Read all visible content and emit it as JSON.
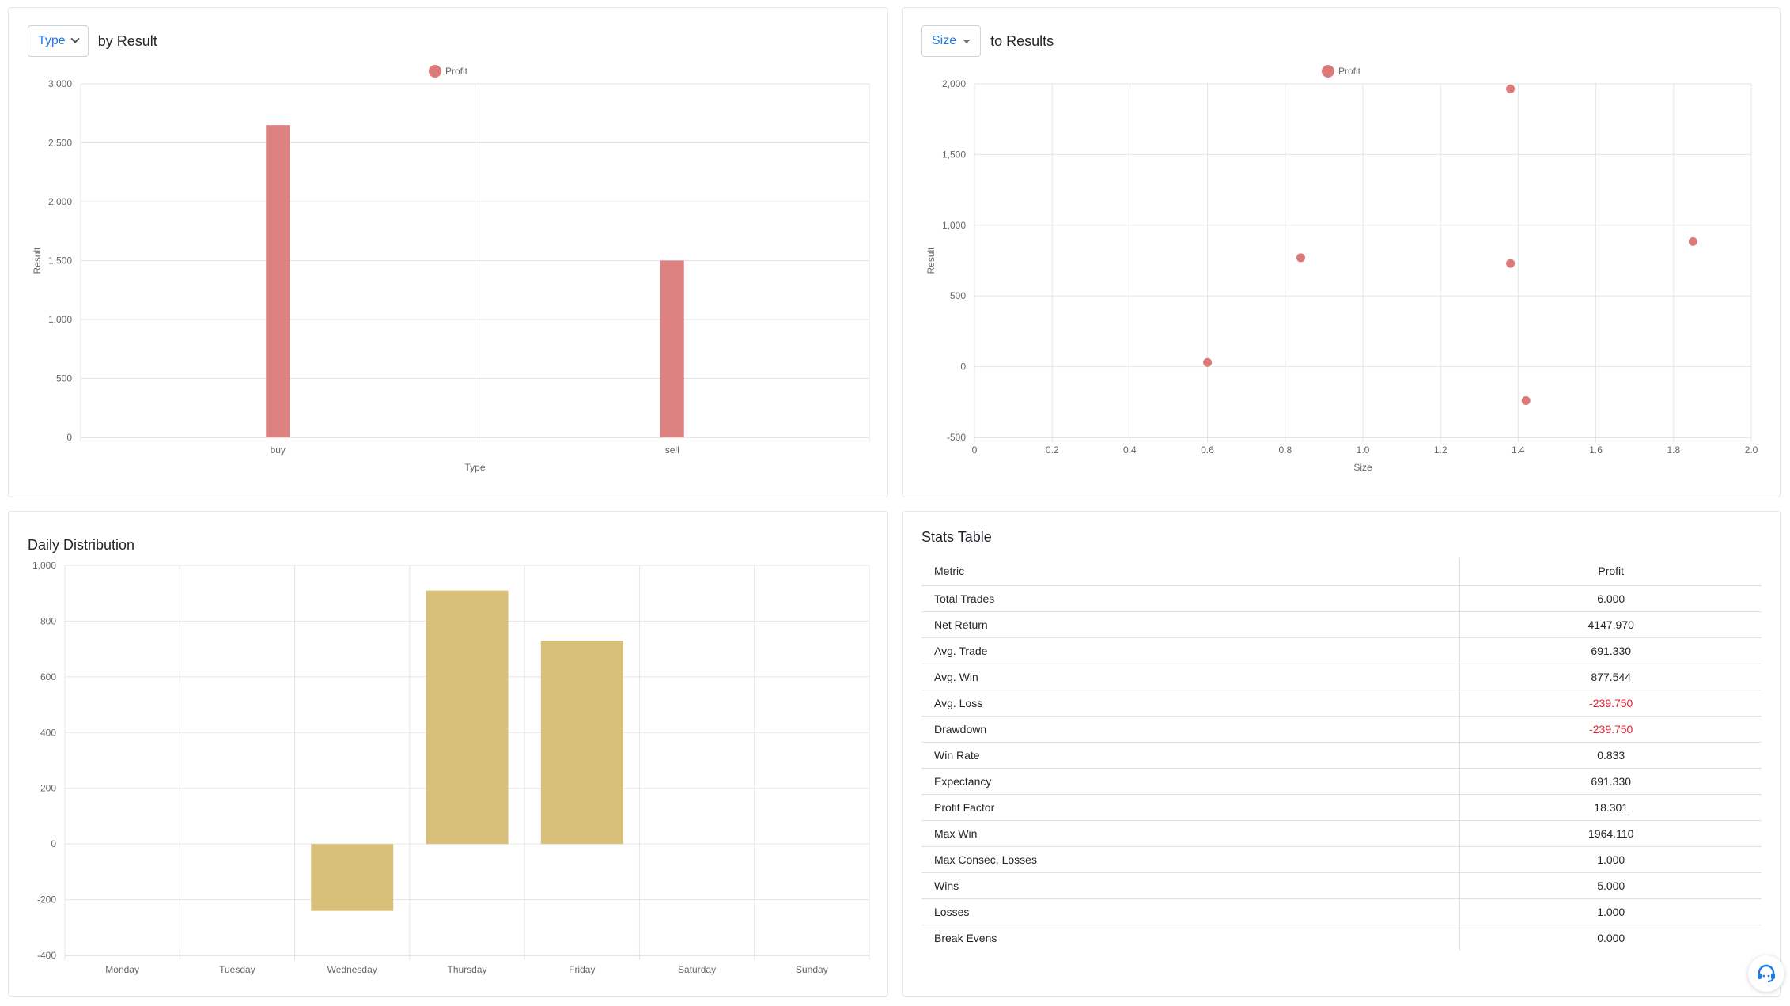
{
  "type_panel": {
    "selector_label": "Type",
    "title": "by Result",
    "chart_data": {
      "type": "bar",
      "categories": [
        "buy",
        "sell"
      ],
      "series": [
        {
          "name": "Profit",
          "values": [
            2650,
            1500
          ]
        }
      ],
      "xlabel": "Type",
      "ylabel": "Result",
      "ylim": [
        0,
        3000
      ],
      "yticks": [
        "0",
        "500",
        "1,000",
        "1,500",
        "2,000",
        "2,500",
        "3,000"
      ],
      "legend": "top-center",
      "grid": true,
      "color": "#dc7a7a"
    }
  },
  "size_panel": {
    "selector_label": "Size",
    "title": "to Results",
    "chart_data": {
      "type": "scatter",
      "series": [
        {
          "name": "Profit",
          "points": [
            {
              "x": 0.6,
              "y": 30
            },
            {
              "x": 0.84,
              "y": 770
            },
            {
              "x": 1.38,
              "y": 1964
            },
            {
              "x": 1.38,
              "y": 730
            },
            {
              "x": 1.42,
              "y": -240
            },
            {
              "x": 1.85,
              "y": 885
            }
          ]
        }
      ],
      "xlabel": "Size",
      "ylabel": "Result",
      "xlim": [
        0,
        2.0
      ],
      "ylim": [
        -500,
        2000
      ],
      "xticks": [
        "0",
        "0.2",
        "0.4",
        "0.6",
        "0.8",
        "1.0",
        "1.2",
        "1.4",
        "1.6",
        "1.8",
        "2.0"
      ],
      "yticks": [
        "-500",
        "0",
        "500",
        "1,000",
        "1,500",
        "2,000"
      ],
      "legend": "top-center",
      "grid": true,
      "color": "#dc7a7a"
    }
  },
  "daily_panel": {
    "title": "Daily Distribution",
    "chart_data": {
      "type": "bar",
      "categories": [
        "Monday",
        "Tuesday",
        "Wednesday",
        "Thursday",
        "Friday",
        "Saturday",
        "Sunday"
      ],
      "values": [
        0,
        0,
        -240,
        910,
        730,
        0,
        0
      ],
      "ylim": [
        -400,
        1000
      ],
      "yticks": [
        "-400",
        "-200",
        "0",
        "200",
        "400",
        "600",
        "800",
        "1,000"
      ],
      "grid": true,
      "color": "#d9c07a"
    }
  },
  "stats_panel": {
    "title": "Stats Table",
    "columns": [
      "Metric",
      "Profit"
    ],
    "rows": [
      {
        "metric": "Total Trades",
        "value": "6.000",
        "negative": false
      },
      {
        "metric": "Net Return",
        "value": "4147.970",
        "negative": false
      },
      {
        "metric": "Avg. Trade",
        "value": "691.330",
        "negative": false
      },
      {
        "metric": "Avg. Win",
        "value": "877.544",
        "negative": false
      },
      {
        "metric": "Avg. Loss",
        "value": "-239.750",
        "negative": true
      },
      {
        "metric": "Drawdown",
        "value": "-239.750",
        "negative": true
      },
      {
        "metric": "Win Rate",
        "value": "0.833",
        "negative": false
      },
      {
        "metric": "Expectancy",
        "value": "691.330",
        "negative": false
      },
      {
        "metric": "Profit Factor",
        "value": "18.301",
        "negative": false
      },
      {
        "metric": "Max Win",
        "value": "1964.110",
        "negative": false
      },
      {
        "metric": "Max Consec. Losses",
        "value": "1.000",
        "negative": false
      },
      {
        "metric": "Wins",
        "value": "5.000",
        "negative": false
      },
      {
        "metric": "Losses",
        "value": "1.000",
        "negative": false
      },
      {
        "metric": "Break Evens",
        "value": "0.000",
        "negative": false
      }
    ]
  },
  "support": {
    "icon": "support-chat-icon"
  }
}
